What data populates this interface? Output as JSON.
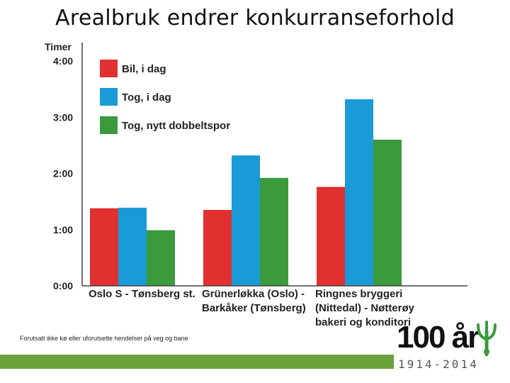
{
  "slide": {
    "title": "Arealbruk endrer konkurranseforhold",
    "footnote": "Forutsatt ikke kø eller uforutsette hendelser på veg og bane"
  },
  "logo": {
    "main": "100 år",
    "years": "1914-2014",
    "accent_color": "#6aa13a",
    "icon": "sprout-icon"
  },
  "chart_data": {
    "type": "bar",
    "ylabel": "Timer",
    "ylim": [
      0,
      4
    ],
    "yticks": [
      0,
      1,
      2,
      3,
      4
    ],
    "ytick_labels": [
      "0:00",
      "1:00",
      "2:00",
      "3:00",
      "4:00"
    ],
    "categories": [
      [
        "Oslo S - Tønsberg st."
      ],
      [
        "Grünerløkka (Oslo) -",
        "Barkåker (Tønsberg)"
      ],
      [
        "Ringnes bryggeri",
        "(Nittedal) - Nøtterøy",
        "bakeri og konditori"
      ]
    ],
    "series": [
      {
        "name": "Bil, i dag",
        "color": "#e03030",
        "values": [
          1.38,
          1.35,
          1.76
        ]
      },
      {
        "name": "Tog, i dag",
        "color": "#1a9ad6",
        "values": [
          1.39,
          2.32,
          3.32
        ]
      },
      {
        "name": "Tog, nytt dobbeltspor",
        "color": "#3a9a3c",
        "values": [
          0.99,
          1.92,
          2.6
        ]
      }
    ],
    "legend_position": "top-left",
    "grid": false
  }
}
